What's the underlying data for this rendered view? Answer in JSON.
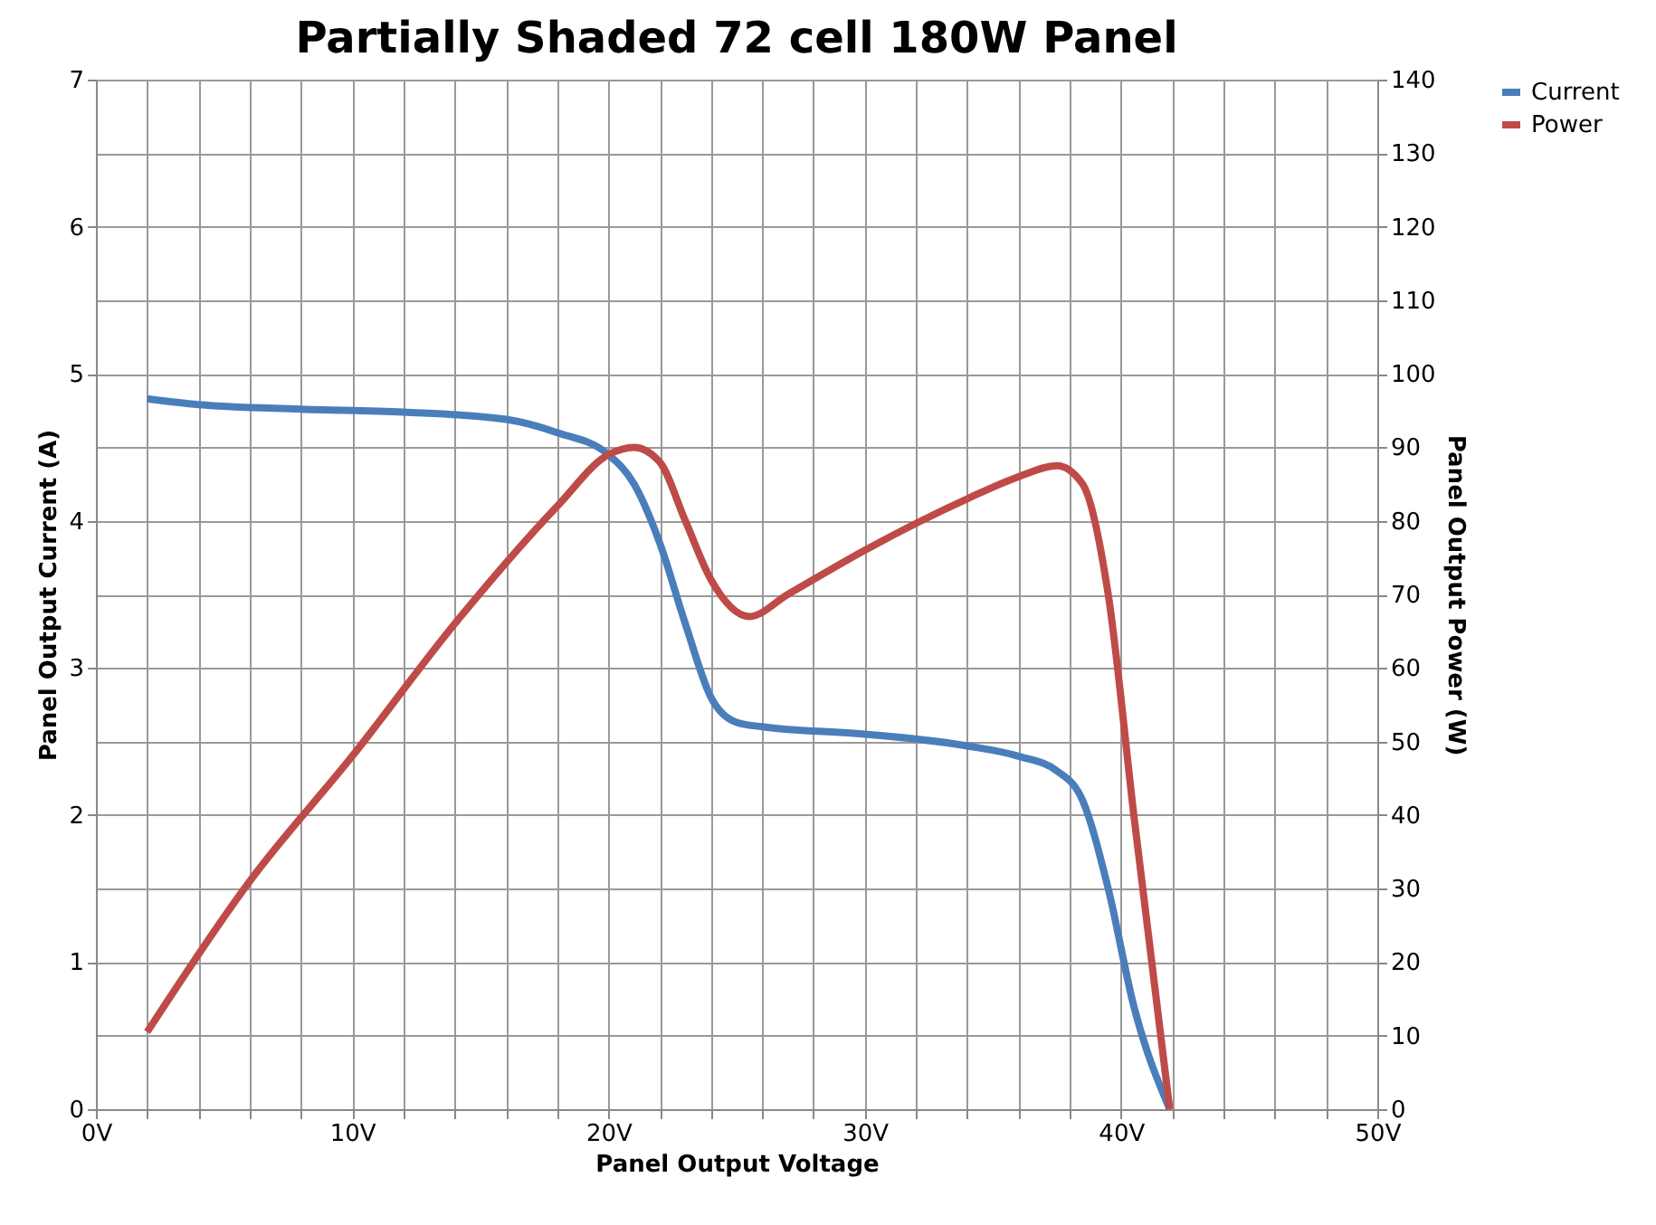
{
  "chart_data": {
    "type": "line",
    "title": "Partially Shaded 72 cell 180W Panel",
    "xlabel": "Panel Output Voltage",
    "ylabel": "Panel Output Current (A)",
    "y2label": "Panel Output Power (W)",
    "xlim": [
      0,
      50
    ],
    "xticks": [
      {
        "value": 0,
        "label": "0V"
      },
      {
        "value": 2,
        "label": null
      },
      {
        "value": 4,
        "label": null
      },
      {
        "value": 6,
        "label": null
      },
      {
        "value": 8,
        "label": null
      },
      {
        "value": 10,
        "label": "10V"
      },
      {
        "value": 12,
        "label": null
      },
      {
        "value": 14,
        "label": null
      },
      {
        "value": 16,
        "label": null
      },
      {
        "value": 18,
        "label": null
      },
      {
        "value": 20,
        "label": "20V"
      },
      {
        "value": 22,
        "label": null
      },
      {
        "value": 24,
        "label": null
      },
      {
        "value": 26,
        "label": null
      },
      {
        "value": 28,
        "label": null
      },
      {
        "value": 30,
        "label": "30V"
      },
      {
        "value": 32,
        "label": null
      },
      {
        "value": 34,
        "label": null
      },
      {
        "value": 36,
        "label": null
      },
      {
        "value": 38,
        "label": null
      },
      {
        "value": 40,
        "label": "40V"
      },
      {
        "value": 42,
        "label": null
      },
      {
        "value": 44,
        "label": null
      },
      {
        "value": 46,
        "label": null
      },
      {
        "value": 48,
        "label": null
      },
      {
        "value": 50,
        "label": "50V"
      }
    ],
    "ylim": [
      0,
      7
    ],
    "yticks": [
      0,
      1,
      2,
      3,
      4,
      5,
      6,
      7
    ],
    "y2lim": [
      0,
      140
    ],
    "y2ticks": [
      0,
      10,
      20,
      30,
      40,
      50,
      60,
      70,
      80,
      90,
      100,
      110,
      120,
      130,
      140
    ],
    "grid": true,
    "legend": "right",
    "marker": "none",
    "line_style": "solid",
    "series": [
      {
        "name": "Current",
        "color": "#4a7ebb",
        "x": [
          2,
          4,
          8,
          12,
          16,
          18,
          20,
          21,
          22,
          23,
          24,
          25,
          26,
          30,
          34,
          36,
          37.5,
          38.5,
          39.5,
          40.5,
          41.9
        ],
        "values": [
          4.83,
          4.79,
          4.76,
          4.74,
          4.69,
          4.6,
          4.45,
          4.25,
          3.85,
          3.3,
          2.8,
          2.63,
          2.6,
          2.55,
          2.47,
          2.4,
          2.3,
          2.1,
          1.5,
          0.7,
          0
        ]
      },
      {
        "name": "Power",
        "color": "#be4b48",
        "axis": "y2",
        "x": [
          2,
          6,
          10,
          14,
          18,
          20,
          21,
          22,
          23,
          24,
          25.5,
          27,
          30,
          34,
          36,
          37.5,
          38.5,
          39.5,
          40.5,
          41.9
        ],
        "values": [
          10.5,
          31,
          48,
          66,
          82,
          89,
          90,
          88,
          80,
          72,
          67,
          70,
          76,
          83,
          86,
          87.5,
          85,
          70,
          40,
          0
        ]
      }
    ]
  }
}
